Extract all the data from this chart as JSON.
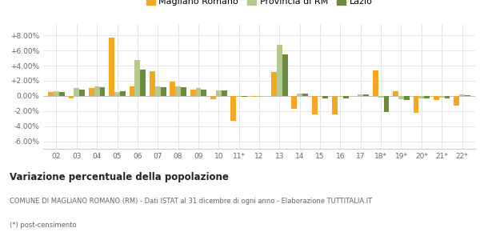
{
  "years": [
    "02",
    "03",
    "04",
    "05",
    "06",
    "07",
    "08",
    "09",
    "10",
    "11*",
    "12",
    "13",
    "14",
    "15",
    "16",
    "17",
    "18*",
    "19*",
    "20*",
    "21*",
    "22*"
  ],
  "magliano": [
    0.5,
    -0.3,
    1.0,
    7.7,
    1.3,
    3.3,
    1.9,
    0.8,
    -0.4,
    -3.3,
    -0.1,
    3.2,
    -1.7,
    -2.5,
    -2.5,
    0.0,
    3.4,
    0.6,
    -2.2,
    -0.5,
    -1.3
  ],
  "provincia": [
    0.6,
    1.0,
    1.2,
    0.5,
    4.7,
    1.2,
    1.2,
    1.0,
    0.75,
    -0.1,
    -0.15,
    6.8,
    0.3,
    -0.1,
    -0.1,
    0.2,
    -0.2,
    -0.4,
    -0.3,
    -0.2,
    0.15
  ],
  "lazio": [
    0.5,
    0.8,
    1.1,
    0.6,
    3.5,
    1.1,
    1.1,
    0.8,
    0.7,
    -0.15,
    -0.05,
    5.5,
    0.25,
    -0.3,
    -0.3,
    0.15,
    -2.1,
    -0.5,
    -0.35,
    -0.3,
    0.1
  ],
  "color_magliano": "#f5a623",
  "color_provincia": "#b5c98e",
  "color_lazio": "#6b8c3e",
  "background": "#ffffff",
  "grid_color": "#e0e0e0",
  "ylim": [
    -7.0,
    9.5
  ],
  "yticks": [
    -6.0,
    -4.0,
    -2.0,
    0.0,
    2.0,
    4.0,
    6.0,
    8.0
  ],
  "ytick_labels": [
    "-6.00%",
    "-4.00%",
    "-2.00%",
    "0.00%",
    "+2.00%",
    "+4.00%",
    "+6.00%",
    "+8.00%"
  ],
  "title": "Variazione percentuale della popolazione",
  "subtitle": "COMUNE DI MAGLIANO ROMANO (RM) - Dati ISTAT al 31 dicembre di ogni anno - Elaborazione TUTTITALIA.IT",
  "footnote": "(*) post-censimento",
  "legend_labels": [
    "Magliano Romano",
    "Provincia di RM",
    "Lazio"
  ]
}
